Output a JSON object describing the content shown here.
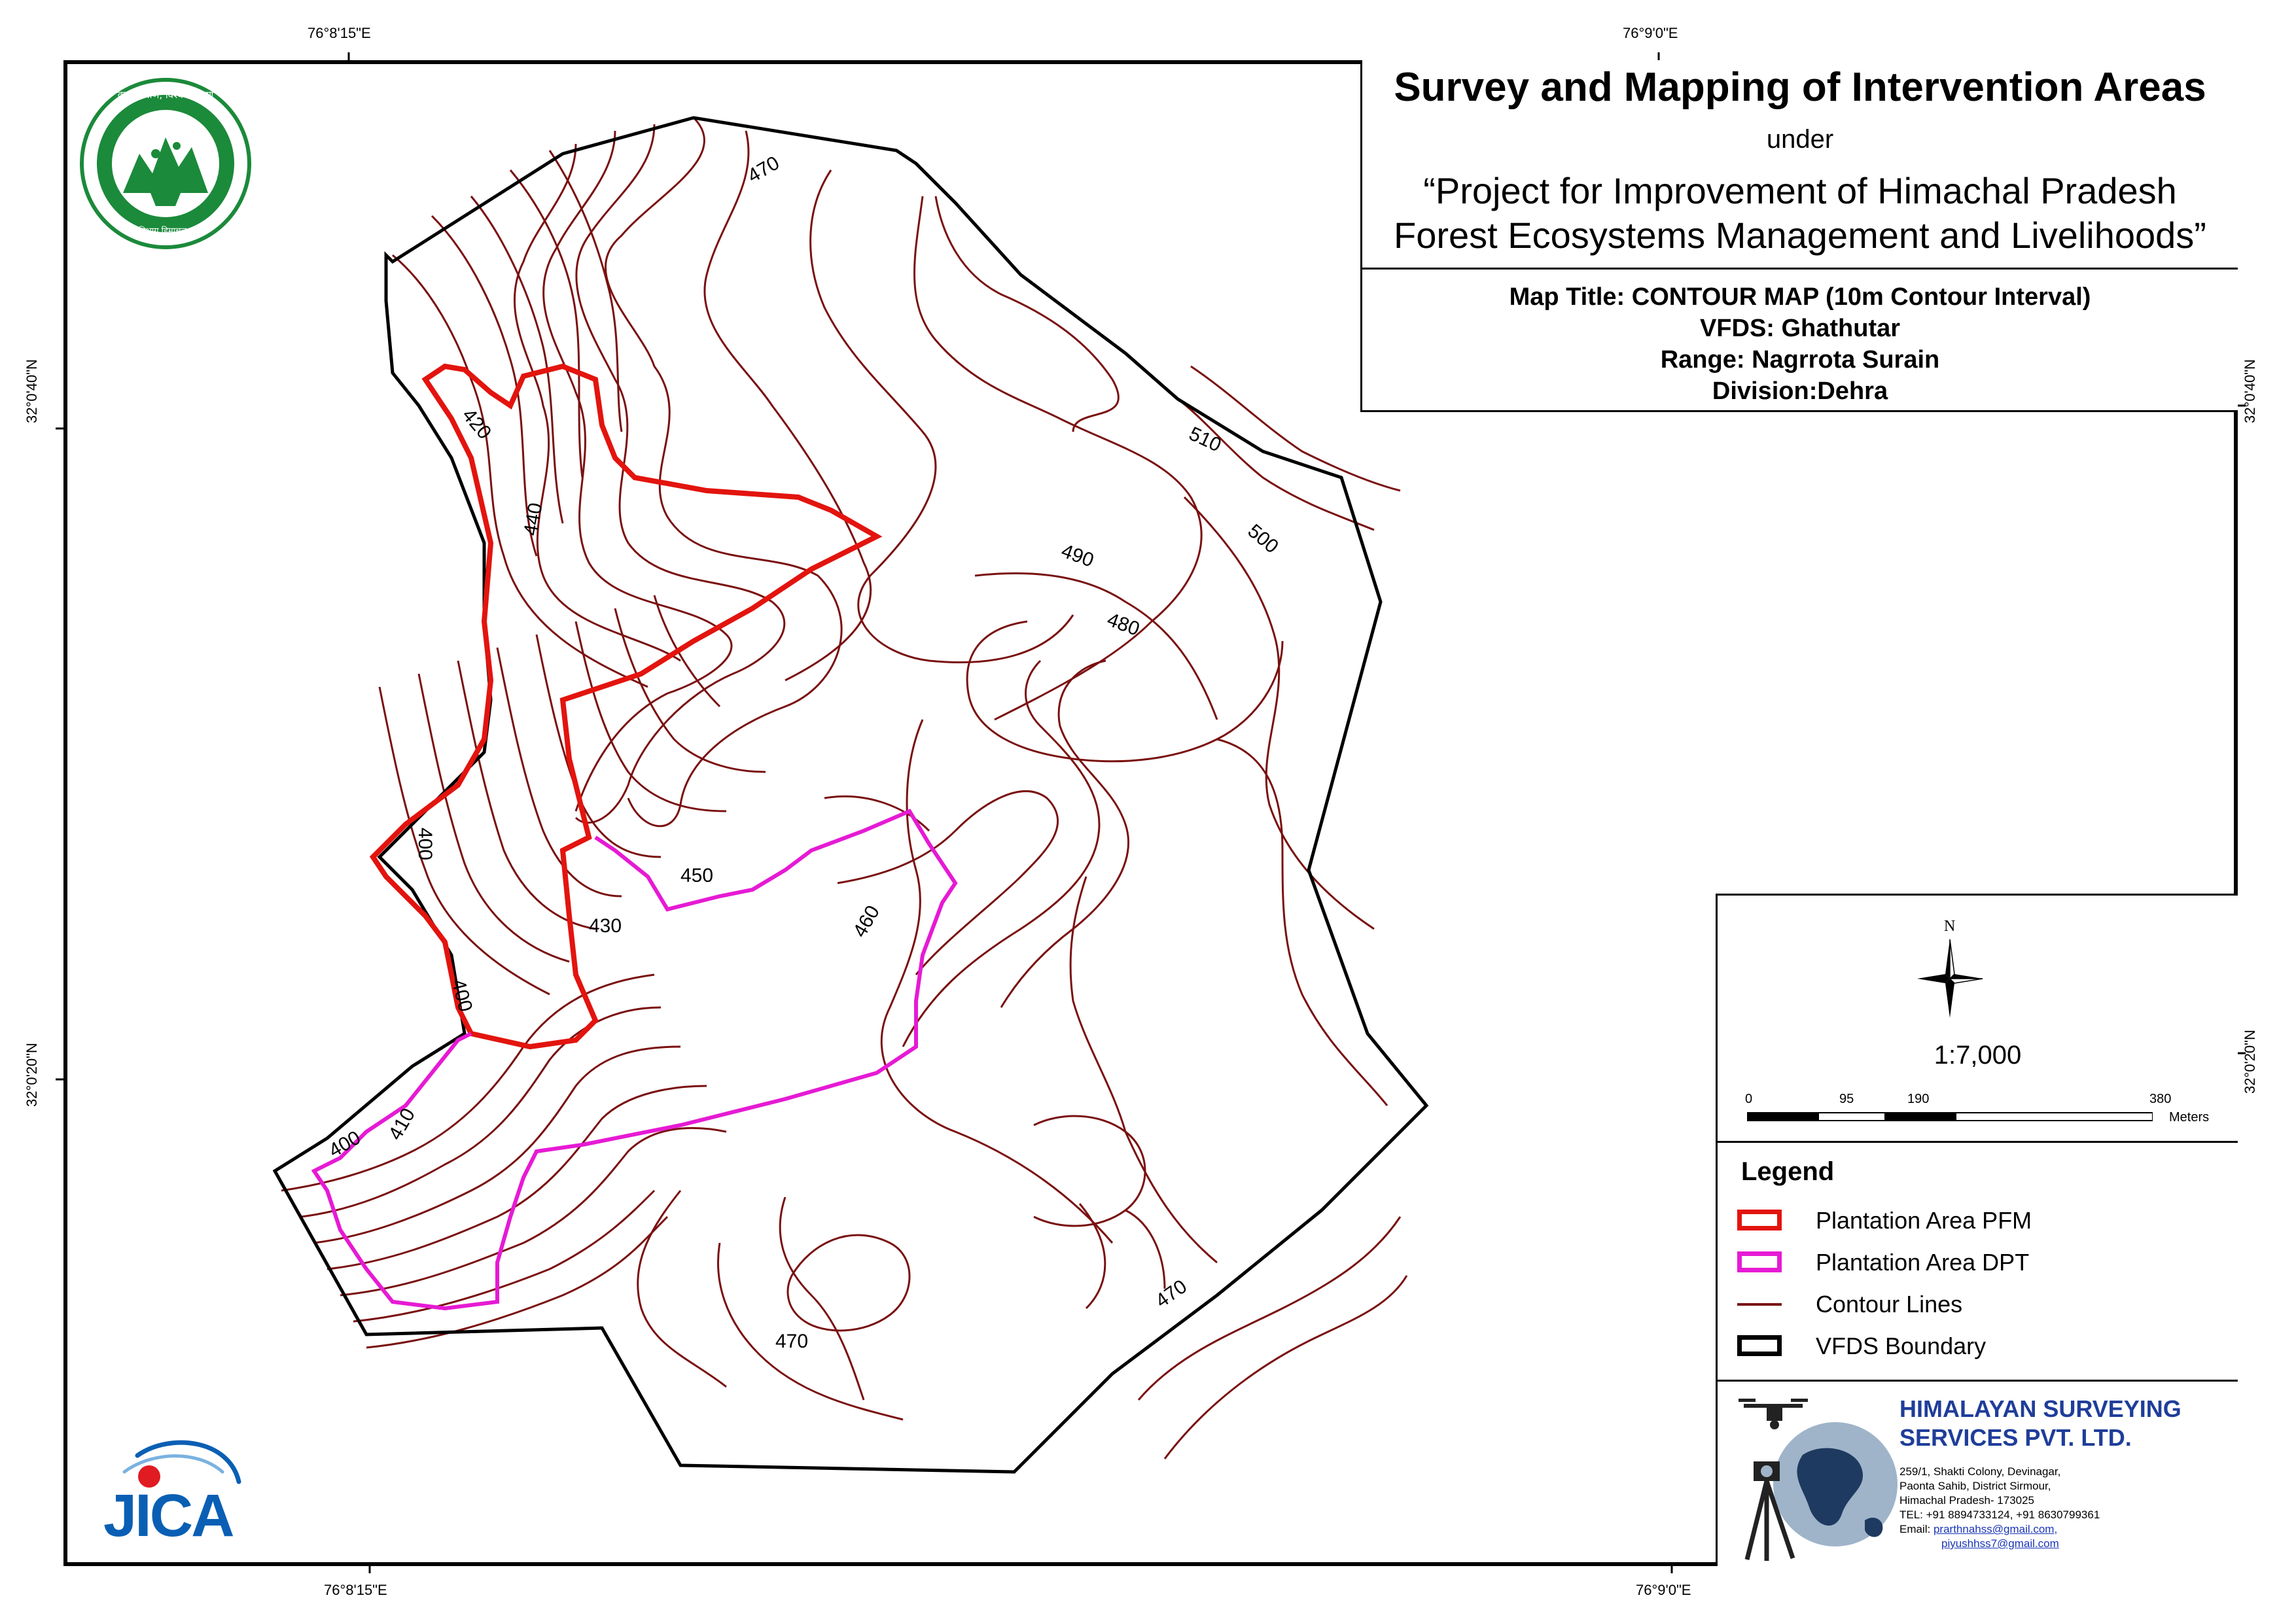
{
  "title": {
    "main": "Survey and Mapping of Intervention Areas",
    "under": "under",
    "project_line1": "“Project for Improvement of Himachal Pradesh",
    "project_line2": "Forest Ecosystems Management and Livelihoods”"
  },
  "map_info": {
    "map_title": "Map Title: CONTOUR MAP (10m Contour Interval)",
    "vfds": "VFDS: Ghathutar",
    "range": "Range: Nagrrota Surain",
    "division": "Division:Dehra"
  },
  "graticule": {
    "top_left": "76°8'15\"E",
    "top_right": "76°9'0\"E",
    "bottom_left": "76°8'15\"E",
    "bottom_right": "76°9'0\"E",
    "left_top": "32°0'40\"N",
    "left_bottom": "32°0'20\"N",
    "right_top": "32°0'40\"N",
    "right_bottom": "32°0'20\"N"
  },
  "north_arrow": {
    "label": "N",
    "icon": "north-arrow-compass-icon"
  },
  "scale": {
    "ratio": "1:7,000",
    "ticks": [
      "0",
      "95",
      "190",
      "380"
    ],
    "unit": "Meters"
  },
  "legend": {
    "title": "Legend",
    "items": [
      {
        "label": "Plantation Area PFM",
        "color": "#e3140e",
        "kind": "polygon"
      },
      {
        "label": "Plantation Area DPT",
        "color": "#e61ad4",
        "kind": "polygon"
      },
      {
        "label": "Contour Lines",
        "color": "#7a1010",
        "kind": "line"
      },
      {
        "label": "VFDS Boundary",
        "color": "#000000",
        "kind": "polygon"
      }
    ]
  },
  "contour_labels": [
    "470",
    "420",
    "440",
    "510",
    "500",
    "490",
    "480",
    "400",
    "450",
    "430",
    "460",
    "400",
    "410",
    "400",
    "470",
    "470"
  ],
  "company": {
    "name_line1": "HIMALAYAN SURVEYING",
    "name_line2": "SERVICES PVT. LTD.",
    "addr1": "259/1, Shakti Colony, Devinagar,",
    "addr2": "Paonta Sahib, District Sirmour,",
    "addr3": "Himachal Pradesh- 173025",
    "tel": "TEL: +91 8894733124, +91 8630799361",
    "email_label": "Email: ",
    "email1": "prarthnahss@gmail.com,",
    "email2": "piyushhss7@gmail.com"
  },
  "logos": {
    "forest_dept_text": "वन श्री त्राण, विश्व कल्याण",
    "forest_dept_bottom": "वन विभाग हिमाचल प्रदेश",
    "jica": "JICA"
  }
}
